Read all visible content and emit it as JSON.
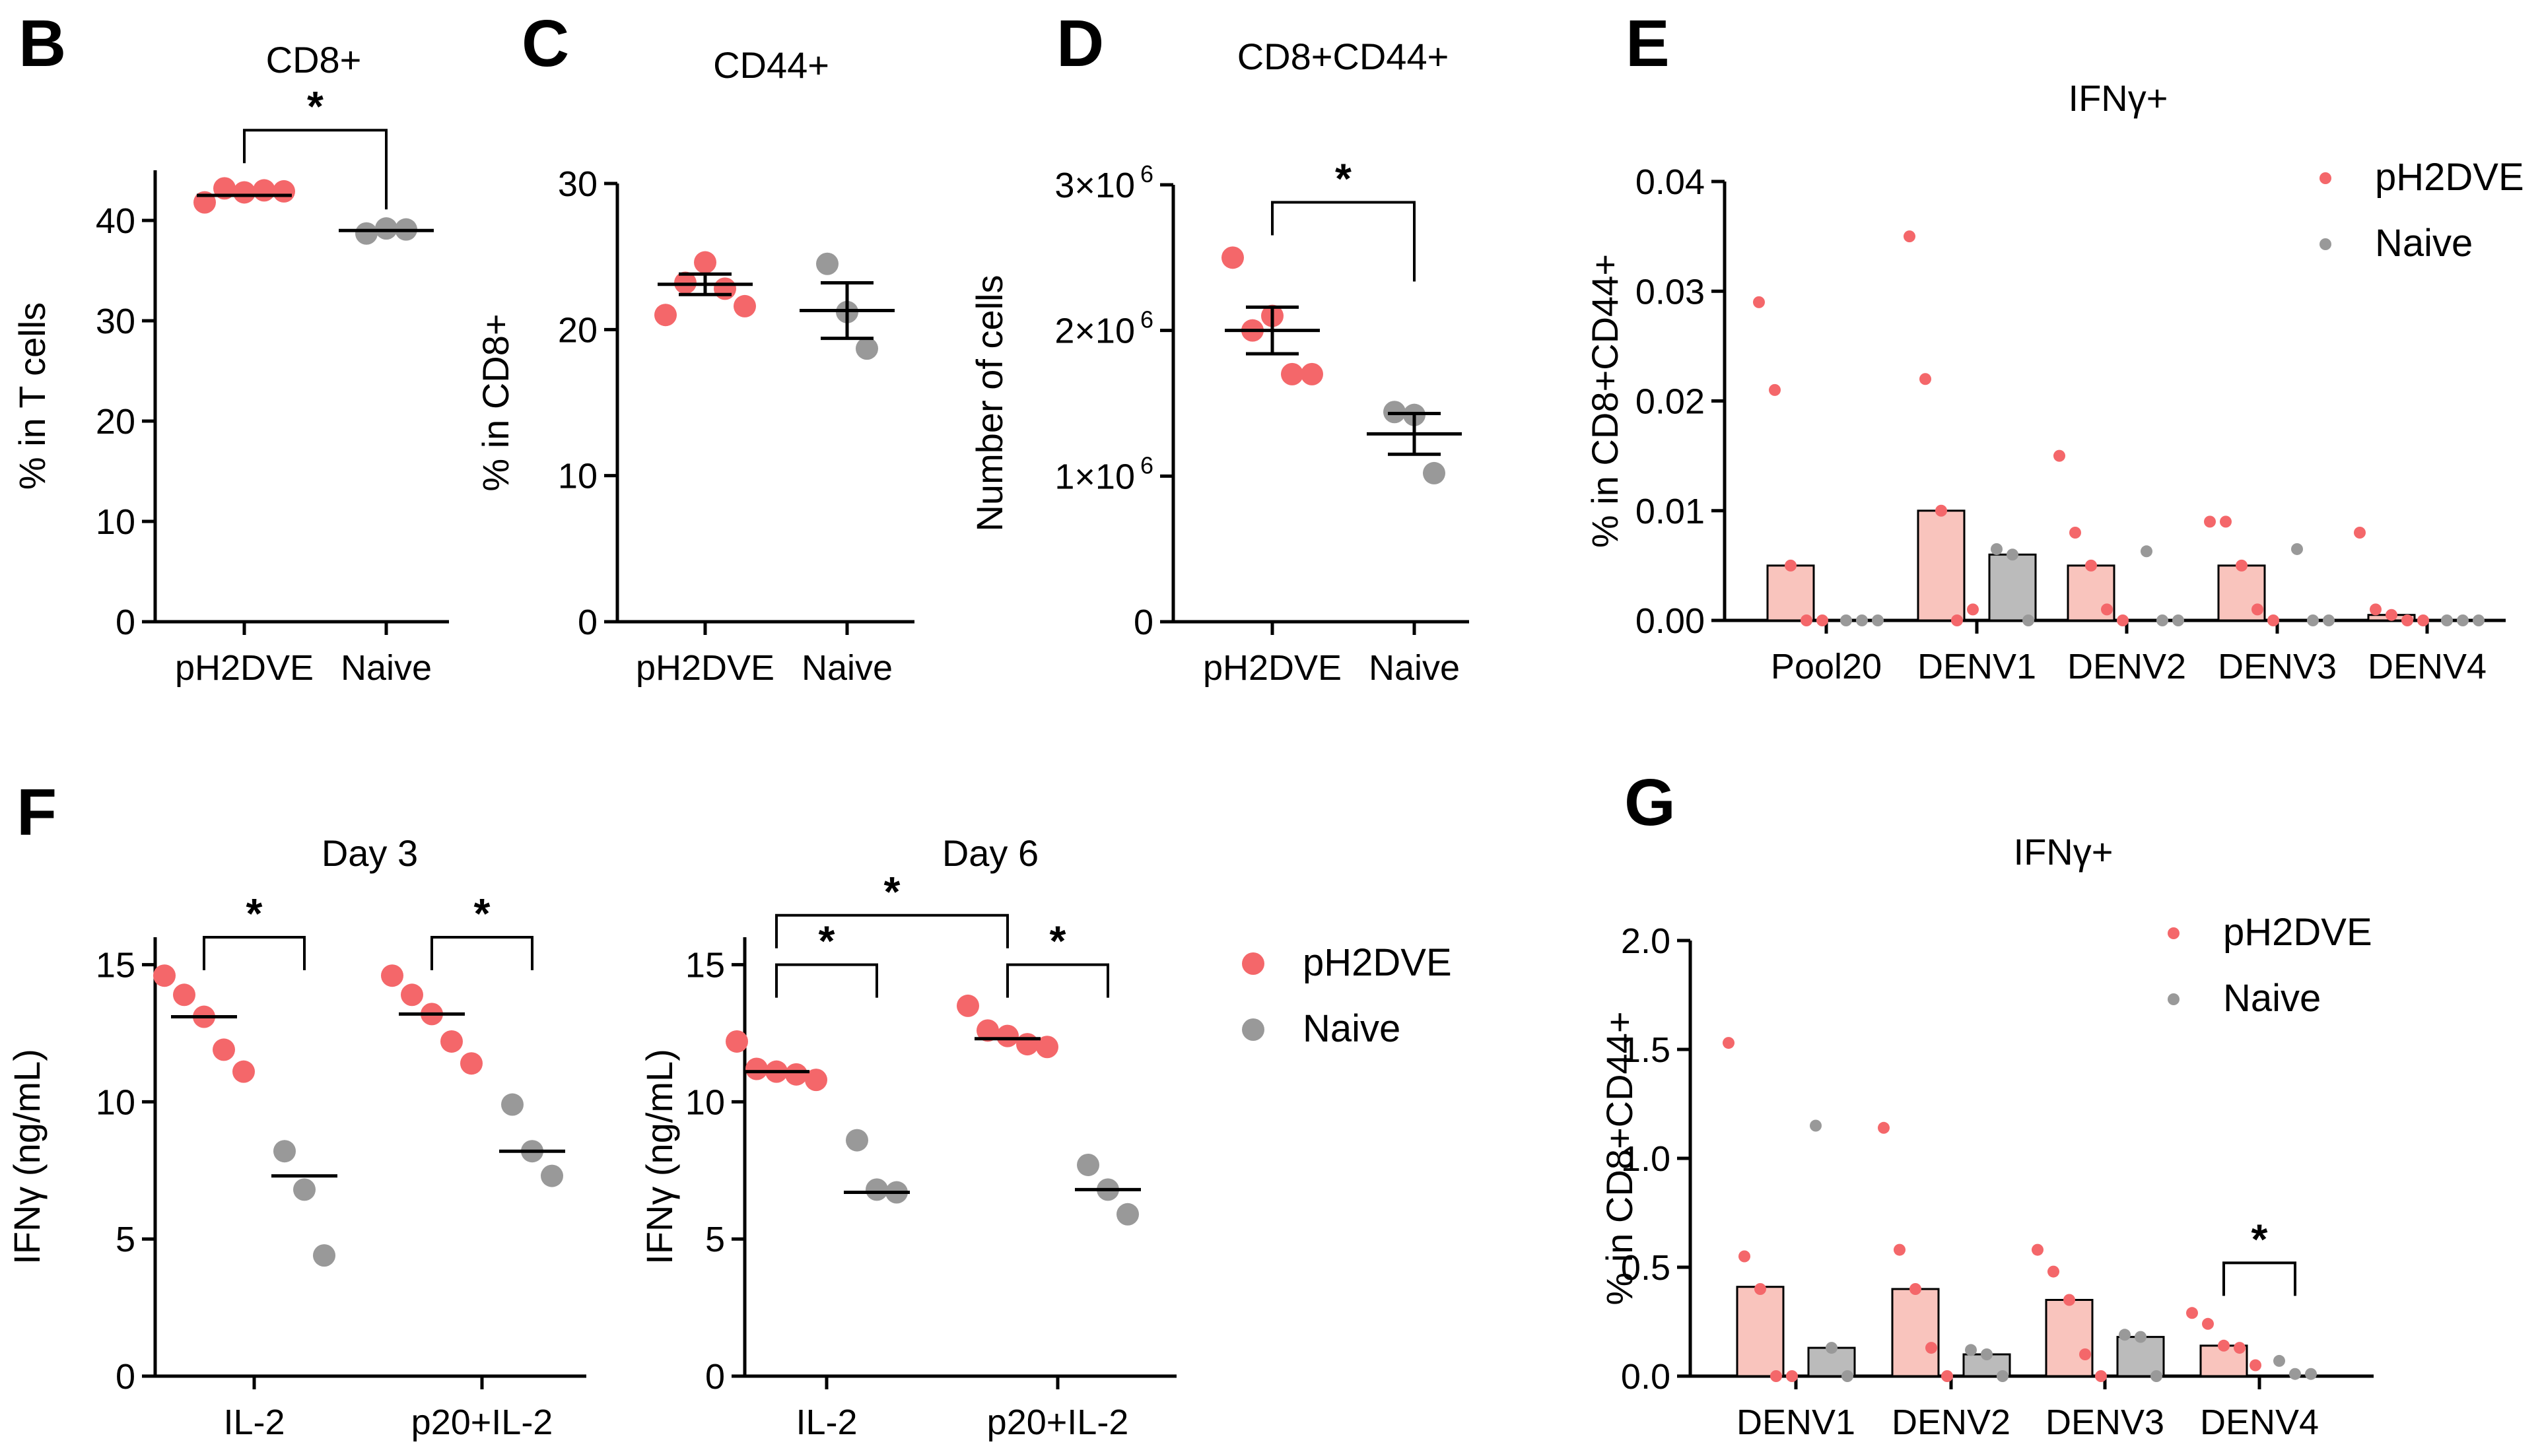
{
  "colors": {
    "vaccine": "#f4676a",
    "vaccine_bar": "#f9c4bd",
    "naive": "#999999",
    "naive_bar": "#bbbbbb",
    "axis": "#000000"
  },
  "chart_data": [
    {
      "id": "B",
      "type": "scatter",
      "panel_label": "B",
      "title": "CD8+",
      "xlabel": "",
      "ylabel": "% in T cells",
      "ylim": [
        0,
        45
      ],
      "yticks": [
        0,
        10,
        20,
        30,
        40
      ],
      "ytick_labels": [
        "0",
        "10",
        "20",
        "30",
        "40"
      ],
      "categories": [
        "pH2DVE",
        "Naive"
      ],
      "series": [
        {
          "name": "pH2DVE",
          "color": "#f4676a",
          "values": [
            [
              41.8,
              43.2,
              42.8,
              43.0,
              42.9
            ]
          ],
          "center": [
            42.5
          ]
        },
        {
          "name": "Naive",
          "color": "#999999",
          "values": [
            [
              38.7,
              39.2,
              39.1
            ]
          ],
          "center": [
            39.0
          ]
        }
      ],
      "significance": [
        {
          "from": 0,
          "to": 1,
          "y": 49,
          "label": "*"
        }
      ]
    },
    {
      "id": "C",
      "type": "scatter",
      "panel_label": "C",
      "title": "CD44+",
      "xlabel": "",
      "ylabel": "% in CD8+",
      "ylim": [
        0,
        30
      ],
      "yticks": [
        0,
        10,
        20,
        30
      ],
      "ytick_labels": [
        "0",
        "10",
        "20",
        "30"
      ],
      "categories": [
        "pH2DVE",
        "Naive"
      ],
      "series": [
        {
          "name": "pH2DVE",
          "color": "#f4676a",
          "values": [
            [
              21.0,
              23.2,
              24.6,
              22.8,
              21.6
            ]
          ],
          "center": [
            23.1
          ],
          "error": [
            0.7
          ]
        },
        {
          "name": "Naive",
          "color": "#999999",
          "values": [
            [
              24.5,
              21.2,
              18.7
            ]
          ],
          "center": [
            21.3
          ],
          "error": [
            1.9
          ]
        }
      ],
      "significance": []
    },
    {
      "id": "D",
      "type": "scatter",
      "panel_label": "D",
      "title": "CD8+CD44+",
      "xlabel": "",
      "ylabel": "Number of cells",
      "ylim": [
        0,
        3000000
      ],
      "yticks": [
        0,
        1000000,
        2000000,
        3000000
      ],
      "ytick_labels": [
        "0",
        "1×10",
        "2×10",
        "3×10"
      ],
      "ytick_exponent": "6",
      "categories": [
        "pH2DVE",
        "Naive"
      ],
      "series": [
        {
          "name": "pH2DVE",
          "color": "#f4676a",
          "values": [
            [
              2500000,
              2000000,
              2100000,
              1700000,
              1700000
            ]
          ],
          "center": [
            2000000
          ],
          "error": [
            160000
          ]
        },
        {
          "name": "Naive",
          "color": "#999999",
          "values": [
            [
              1440000,
              1420000,
              1020000
            ]
          ],
          "center": [
            1290000
          ],
          "error": [
            140000
          ]
        }
      ],
      "significance": [
        {
          "from": 0,
          "to": 1,
          "y": 2880000,
          "label": "*"
        }
      ]
    },
    {
      "id": "E",
      "type": "bar",
      "panel_label": "E",
      "title": "IFNγ+",
      "xlabel": "",
      "ylabel": "% in CD8+CD44+",
      "ylim": [
        0,
        0.04
      ],
      "yticks": [
        0,
        0.01,
        0.02,
        0.03,
        0.04
      ],
      "ytick_labels": [
        "0.00",
        "0.01",
        "0.02",
        "0.03",
        "0.04"
      ],
      "categories": [
        "Pool20",
        "DENV1",
        "DENV2",
        "DENV3",
        "DENV4"
      ],
      "legend": [
        "pH2DVE",
        "Naive"
      ],
      "legend_position": "top-right",
      "series": [
        {
          "name": "pH2DVE",
          "color": "#f4676a",
          "bar_color": "#f9c4bd",
          "bars": [
            0.005,
            0.01,
            0.005,
            0.005,
            0.0005
          ],
          "values": [
            [
              0.029,
              0.021,
              0.005,
              0.0,
              0.0
            ],
            [
              0.035,
              0.022,
              0.01,
              0.0,
              0.001
            ],
            [
              0.015,
              0.008,
              0.005,
              0.001,
              0.0
            ],
            [
              0.009,
              0.009,
              0.005,
              0.001,
              0.0
            ],
            [
              0.008,
              0.001,
              0.0005,
              0.0,
              0.0
            ]
          ]
        },
        {
          "name": "Naive",
          "color": "#999999",
          "bar_color": "#bbbbbb",
          "bars": [
            0,
            0.006,
            0,
            0,
            0
          ],
          "values": [
            [
              0.0,
              0.0,
              0.0
            ],
            [
              0.0065,
              0.006,
              0.0
            ],
            [
              0.0063,
              0.0,
              0.0
            ],
            [
              0.0065,
              0.0,
              0.0
            ],
            [
              0.0,
              0.0,
              0.0
            ]
          ]
        }
      ],
      "significance": []
    },
    {
      "id": "F1",
      "type": "scatter",
      "panel_label": "F",
      "title": "Day 3",
      "xlabel": "",
      "ylabel": "IFNγ (ng/mL)",
      "ylim": [
        0,
        16
      ],
      "yticks": [
        0,
        5,
        10,
        15
      ],
      "ytick_labels": [
        "0",
        "5",
        "10",
        "15"
      ],
      "categories": [
        "IL-2",
        "p20+IL-2"
      ],
      "series": [
        {
          "name": "pH2DVE",
          "color": "#f4676a",
          "values": [
            [
              14.6,
              13.9,
              13.1,
              11.9,
              11.1
            ],
            [
              14.6,
              13.9,
              13.2,
              12.2,
              11.4
            ]
          ],
          "center": [
            13.1,
            13.2
          ]
        },
        {
          "name": "Naive",
          "color": "#999999",
          "values": [
            [
              8.2,
              6.8,
              4.4
            ],
            [
              9.9,
              8.2,
              7.3
            ]
          ],
          "center": [
            7.3,
            8.2
          ]
        }
      ],
      "significance": [
        {
          "from": 0,
          "to": 1,
          "cat": 0,
          "y": 16,
          "label": "*"
        },
        {
          "from": 0,
          "to": 1,
          "cat": 1,
          "y": 16,
          "label": "*"
        }
      ]
    },
    {
      "id": "F2",
      "type": "scatter",
      "panel_label": "",
      "title": "Day 6",
      "xlabel": "",
      "ylabel": "IFNγ (ng/mL)",
      "ylim": [
        0,
        16
      ],
      "yticks": [
        0,
        5,
        10,
        15
      ],
      "ytick_labels": [
        "0",
        "5",
        "10",
        "15"
      ],
      "categories": [
        "IL-2",
        "p20+IL-2"
      ],
      "legend": [
        "pH2DVE",
        "Naive"
      ],
      "legend_position": "right",
      "series": [
        {
          "name": "pH2DVE",
          "color": "#f4676a",
          "values": [
            [
              12.2,
              11.2,
              11.1,
              11.0,
              10.8
            ],
            [
              13.5,
              12.6,
              12.4,
              12.1,
              12.0
            ]
          ],
          "center": [
            11.1,
            12.3
          ]
        },
        {
          "name": "Naive",
          "color": "#999999",
          "values": [
            [
              8.6,
              6.8,
              6.7
            ],
            [
              7.7,
              6.8,
              5.9
            ]
          ],
          "center": [
            6.7,
            6.8
          ]
        }
      ],
      "significance": [
        {
          "from": 0,
          "to": 1,
          "cat": 0,
          "y": 15,
          "label": "*"
        },
        {
          "from": 0,
          "to": 1,
          "cat": 1,
          "y": 15,
          "label": "*"
        },
        {
          "from_cat": 0,
          "to_cat": 1,
          "series": 0,
          "y": 16.8,
          "label": "*"
        }
      ]
    },
    {
      "id": "G",
      "type": "bar",
      "panel_label": "G",
      "title": "IFNγ+",
      "xlabel": "",
      "ylabel": "% in CD8+CD44+",
      "ylim": [
        0,
        2.0
      ],
      "yticks": [
        0,
        0.5,
        1.0,
        1.5,
        2.0
      ],
      "ytick_labels": [
        "0.0",
        "0.5",
        "1.0",
        "1.5",
        "2.0"
      ],
      "categories": [
        "DENV1",
        "DENV2",
        "DENV3",
        "DENV4"
      ],
      "legend": [
        "pH2DVE",
        "Naive"
      ],
      "legend_position": "top-right",
      "series": [
        {
          "name": "pH2DVE",
          "color": "#f4676a",
          "bar_color": "#f9c4bd",
          "bars": [
            0.41,
            0.4,
            0.35,
            0.14
          ],
          "values": [
            [
              1.53,
              0.55,
              0.4,
              0.0,
              0.0
            ],
            [
              1.14,
              0.58,
              0.4,
              0.13,
              0.0
            ],
            [
              0.58,
              0.48,
              0.35,
              0.1,
              0.0
            ],
            [
              0.29,
              0.24,
              0.14,
              0.13,
              0.05
            ]
          ]
        },
        {
          "name": "Naive",
          "color": "#999999",
          "bar_color": "#bbbbbb",
          "bars": [
            0.13,
            0.1,
            0.18,
            0.0
          ],
          "values": [
            [
              1.15,
              0.13,
              0.0
            ],
            [
              0.12,
              0.1,
              0.0
            ],
            [
              0.19,
              0.18,
              0.0
            ],
            [
              0.07,
              0.01,
              0.01
            ]
          ]
        }
      ],
      "significance": [
        {
          "from": 0,
          "to": 1,
          "cat": 3,
          "y": 0.52,
          "label": "*"
        }
      ]
    }
  ]
}
